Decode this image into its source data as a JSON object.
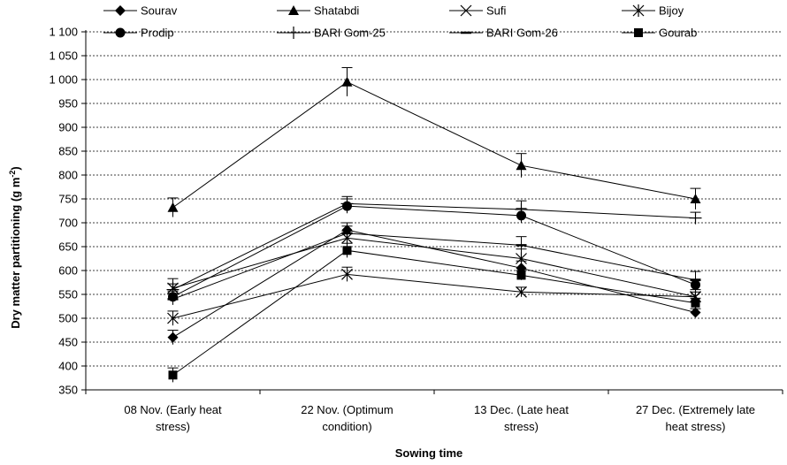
{
  "chart_data": {
    "type": "line",
    "xlabel": "Sowing time",
    "ylabel": "Dry matter partitioning  (g m",
    "ylabel_superscript": "-2",
    "ylabel_close": ")",
    "ylim": [
      350,
      1100
    ],
    "ytick_step": 50,
    "ytick_labels": [
      "350",
      "400",
      "450",
      "500",
      "550",
      "600",
      "650",
      "700",
      "750",
      "800",
      "850",
      "900",
      "950",
      "1 000",
      "1 050",
      "1 100"
    ],
    "categories": [
      [
        "08 Nov. (Early heat",
        "stress)"
      ],
      [
        "22 Nov. (Optimum",
        "condition)"
      ],
      [
        "13 Dec. (Late heat",
        "stress)"
      ],
      [
        "27 Dec. (Extremely late",
        "heat stress)"
      ]
    ],
    "grid": "horizontal dashed",
    "legend_position": "top",
    "series": [
      {
        "name": "Sourav",
        "marker": "diamond",
        "values": [
          460,
          685,
          605,
          512
        ],
        "err": [
          15,
          15,
          15,
          8
        ]
      },
      {
        "name": "Shatabdi",
        "marker": "triangle",
        "values": [
          732,
          995,
          820,
          750
        ],
        "err": [
          20,
          30,
          25,
          22
        ]
      },
      {
        "name": "Sufi",
        "marker": "x",
        "values": [
          500,
          592,
          555,
          545
        ],
        "err": [
          15,
          15,
          10,
          10
        ]
      },
      {
        "name": "Bijoy",
        "marker": "star",
        "values": [
          563,
          668,
          625,
          545
        ],
        "err": [
          20,
          15,
          20,
          15
        ]
      },
      {
        "name": "Prodip",
        "marker": "circle",
        "values": [
          545,
          735,
          715,
          570
        ],
        "err": [
          12,
          15,
          15,
          12
        ]
      },
      {
        "name": "BARI Gom-25",
        "marker": "plus",
        "values": [
          560,
          740,
          728,
          710
        ],
        "err": [
          12,
          15,
          18,
          12
        ]
      },
      {
        "name": "BARI Gom-26",
        "marker": "dash",
        "values": [
          540,
          678,
          653,
          580
        ],
        "err": [
          12,
          15,
          18,
          18
        ]
      },
      {
        "name": "Gourab",
        "marker": "square",
        "values": [
          381,
          642,
          590,
          532
        ],
        "err": [
          15,
          15,
          10,
          10
        ]
      }
    ]
  }
}
